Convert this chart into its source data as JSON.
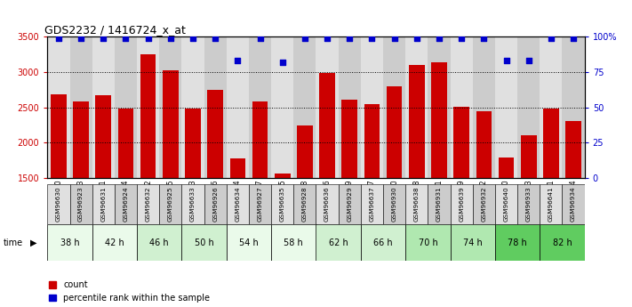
{
  "title": "GDS2232 / 1416724_x_at",
  "samples": [
    "GSM96630",
    "GSM96923",
    "GSM96631",
    "GSM96924",
    "GSM96632",
    "GSM96925",
    "GSM96633",
    "GSM96926",
    "GSM96634",
    "GSM96927",
    "GSM96635",
    "GSM96928",
    "GSM96636",
    "GSM96929",
    "GSM96637",
    "GSM96930",
    "GSM96638",
    "GSM96931",
    "GSM96639",
    "GSM96932",
    "GSM96640",
    "GSM96933",
    "GSM96641",
    "GSM96934"
  ],
  "counts": [
    2680,
    2590,
    2670,
    2490,
    3250,
    3020,
    2490,
    2750,
    1780,
    2590,
    1560,
    2240,
    2990,
    2610,
    2550,
    2800,
    3100,
    3140,
    2510,
    2450,
    1790,
    2100,
    2490,
    2310
  ],
  "percentile_ranks": [
    99,
    99,
    99,
    99,
    99,
    99,
    99,
    99,
    83,
    99,
    82,
    99,
    99,
    99,
    99,
    99,
    99,
    99,
    99,
    99,
    83,
    83,
    99,
    99
  ],
  "time_groups": [
    {
      "label": "38 h",
      "n": 2
    },
    {
      "label": "42 h",
      "n": 2
    },
    {
      "label": "46 h",
      "n": 2
    },
    {
      "label": "50 h",
      "n": 2
    },
    {
      "label": "54 h",
      "n": 2
    },
    {
      "label": "58 h",
      "n": 2
    },
    {
      "label": "62 h",
      "n": 2
    },
    {
      "label": "66 h",
      "n": 2
    },
    {
      "label": "70 h",
      "n": 2
    },
    {
      "label": "74 h",
      "n": 2
    },
    {
      "label": "78 h",
      "n": 2
    },
    {
      "label": "82 h",
      "n": 2
    }
  ],
  "time_colors": [
    "#eafaea",
    "#eafaea",
    "#d0f0d0",
    "#d0f0d0",
    "#eafaea",
    "#eafaea",
    "#d0f0d0",
    "#d0f0d0",
    "#b0e8b0",
    "#b0e8b0",
    "#60cc60",
    "#60cc60"
  ],
  "bar_color": "#cc0000",
  "dot_color": "#0000cc",
  "ylim_left": [
    1500,
    3500
  ],
  "ylim_right": [
    0,
    100
  ],
  "yticks_left": [
    1500,
    2000,
    2500,
    3000,
    3500
  ],
  "yticks_right": [
    0,
    25,
    50,
    75,
    100
  ],
  "grid_values": [
    2000,
    2500,
    3000
  ],
  "sample_bg_even": "#e0e0e0",
  "sample_bg_odd": "#cccccc"
}
